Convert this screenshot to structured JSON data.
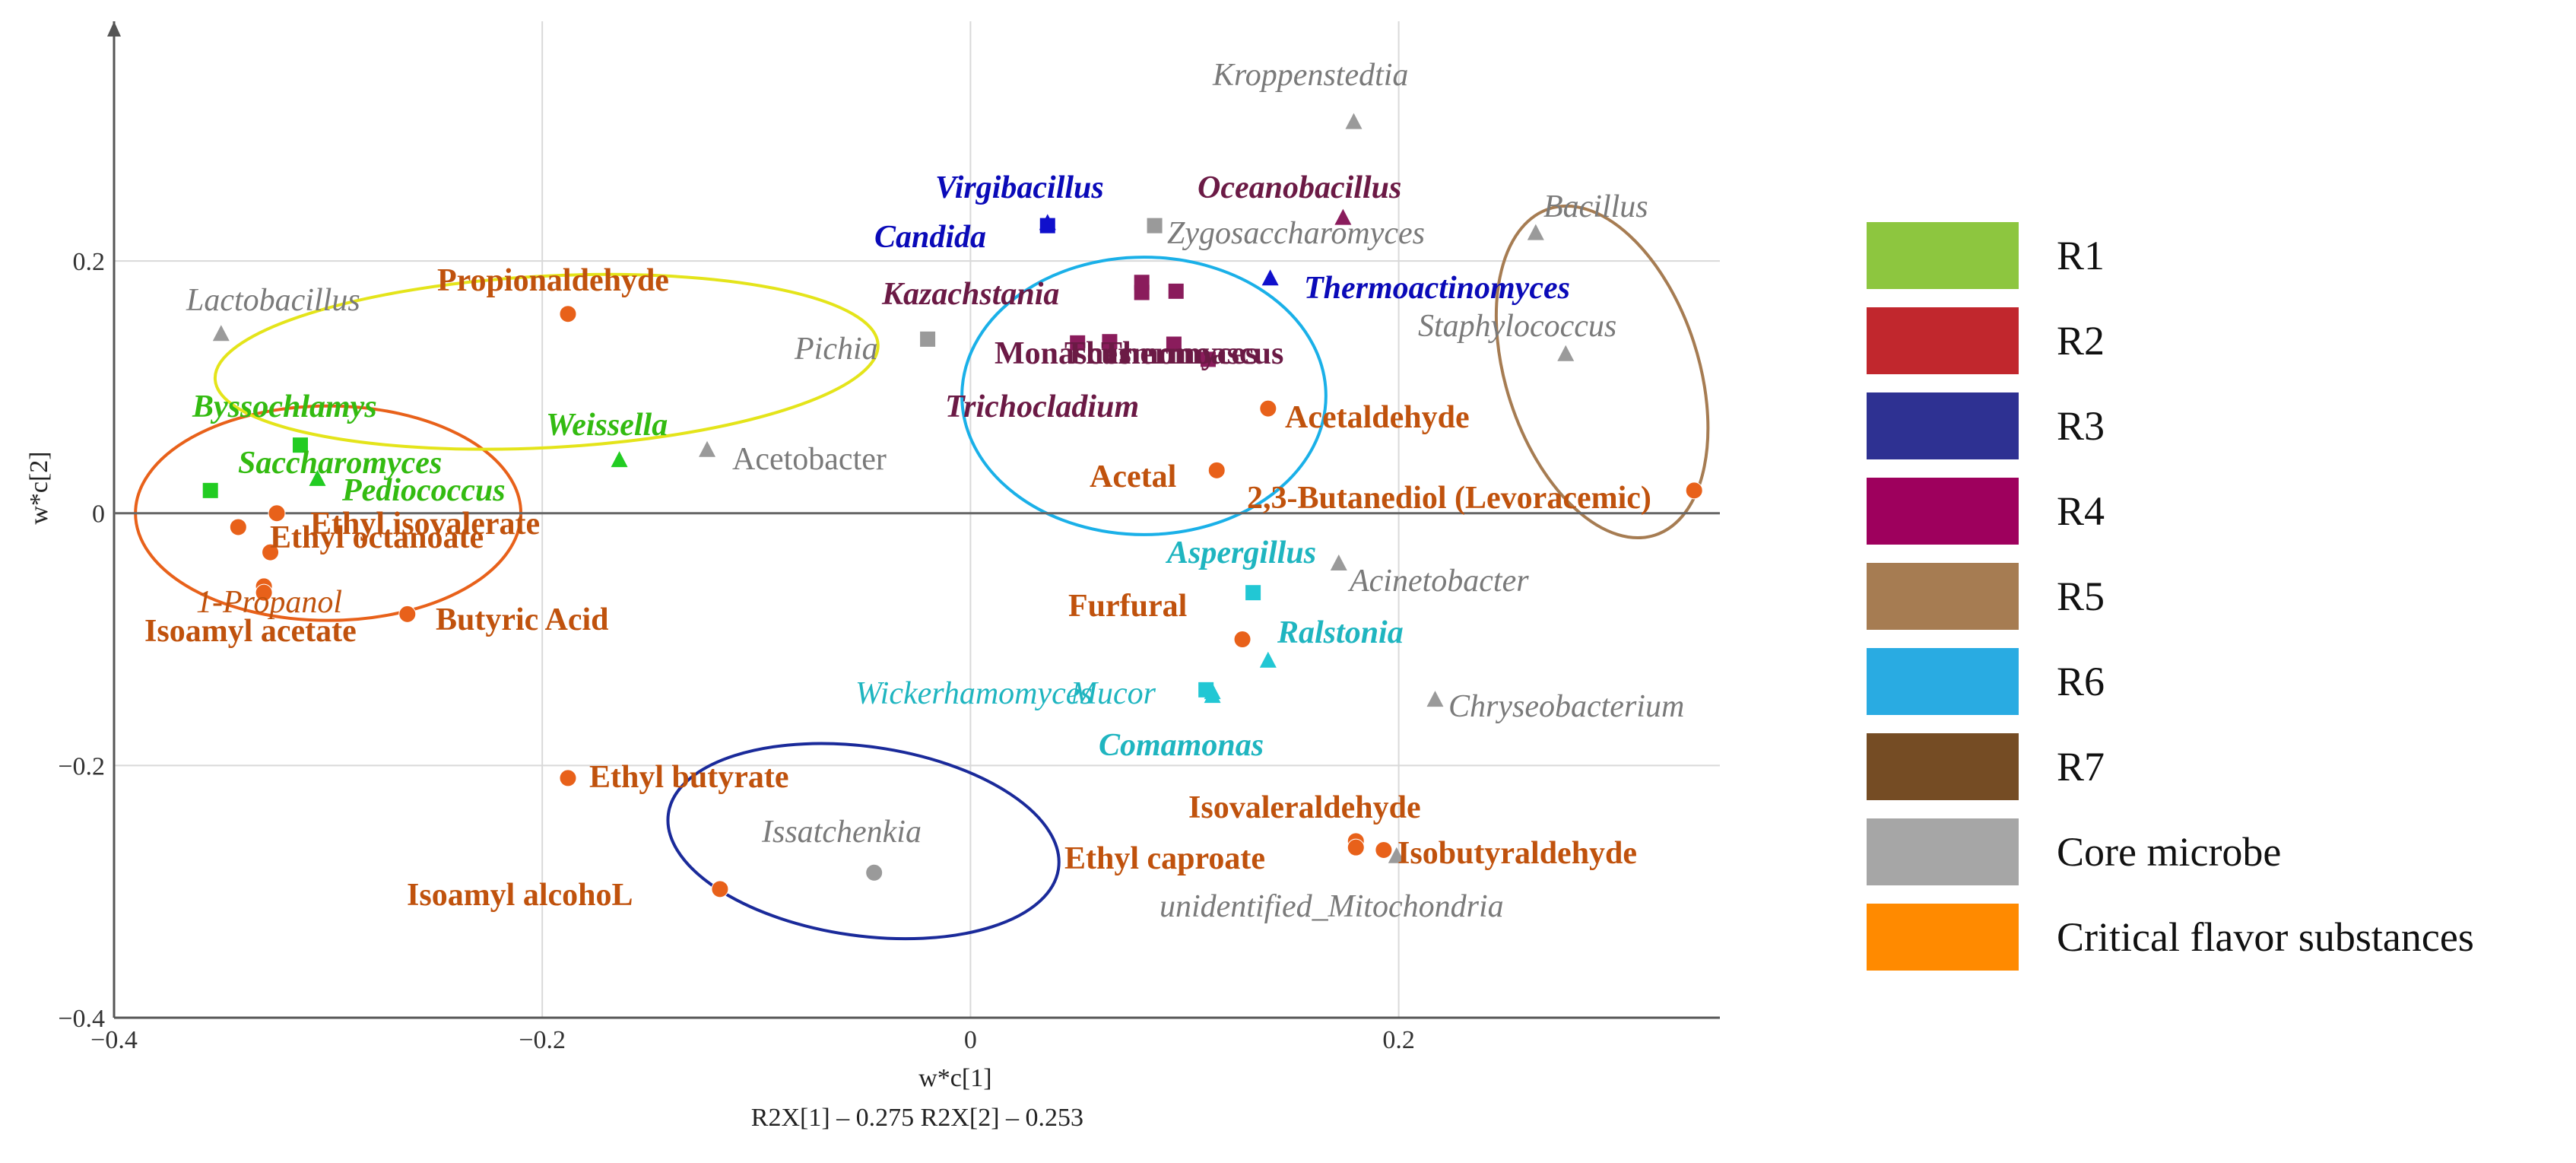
{
  "chart_data": {
    "type": "scatter",
    "title": "",
    "xlabel": "w*c[1]",
    "ylabel": "w*c[2]",
    "footer": "R2X[1] – 0.275 R2X[2] – 0.253",
    "xlim": [
      -0.4,
      0.35
    ],
    "ylim": [
      -0.4,
      0.39
    ],
    "xticks": [
      -0.4,
      -0.2,
      0,
      0.2
    ],
    "xtick_labels": [
      "−0.4",
      "−0.2",
      "0",
      "0.2"
    ],
    "yticks": [
      -0.4,
      -0.2,
      0,
      0.2
    ],
    "ytick_labels": [
      "−0.4",
      "−0.2",
      "0",
      "0.2"
    ],
    "grid": true,
    "legend_position": "right",
    "legend": [
      {
        "label": "R1",
        "color": "#8dc63f"
      },
      {
        "label": "R2",
        "color": "#c1272d"
      },
      {
        "label": "R3",
        "color": "#2e3192"
      },
      {
        "label": "R4",
        "color": "#9e005d"
      },
      {
        "label": "R5",
        "color": "#a67c52"
      },
      {
        "label": "R6",
        "color": "#29abe2"
      },
      {
        "label": "R7",
        "color": "#754c24"
      },
      {
        "label": "Core microbe",
        "color": "#a6a6a6"
      },
      {
        "label": "Critical flavor substances",
        "color": "#ff8a00"
      }
    ],
    "groups": {
      "R1": {
        "color": "#22cc22",
        "label_color": "#33bb11"
      },
      "R3": {
        "color": "#1010cc",
        "label_color": "#0a0ab8"
      },
      "R4": {
        "color": "#8a1c5c",
        "label_color": "#6b1a45"
      },
      "R6": {
        "color": "#22c7d4",
        "label_color": "#1fb5c0"
      },
      "Core": {
        "color": "#9a9a9a",
        "label_color": "#7a7a7a"
      },
      "Flavor": {
        "color": "#e8611a",
        "label_color": "#c0520d"
      }
    },
    "points": [
      {
        "label": "Kroppenstedtia",
        "x": 0.179,
        "y": 0.31,
        "group": "Core",
        "shape": "triangle"
      },
      {
        "label": "Zygosaccharomyces",
        "x": 0.086,
        "y": 0.228,
        "group": "Core",
        "shape": "square"
      },
      {
        "label": "Bacillus",
        "x": 0.264,
        "y": 0.222,
        "group": "Core",
        "shape": "triangle"
      },
      {
        "label": "Lactobacillus",
        "x": -0.35,
        "y": 0.142,
        "group": "Core",
        "shape": "triangle"
      },
      {
        "label": "Pichia",
        "x": -0.02,
        "y": 0.138,
        "group": "Core",
        "shape": "square"
      },
      {
        "label": "Staphylococcus",
        "x": 0.278,
        "y": 0.126,
        "group": "Core",
        "shape": "triangle"
      },
      {
        "label": "Acetobacter",
        "x": -0.123,
        "y": 0.05,
        "group": "Core",
        "shape": "triangle"
      },
      {
        "label": "Acinetobacter",
        "x": 0.172,
        "y": -0.04,
        "group": "Core",
        "shape": "triangle"
      },
      {
        "label": "Chryseobacterium",
        "x": 0.217,
        "y": -0.148,
        "group": "Core",
        "shape": "triangle"
      },
      {
        "label": "Issatchenkia",
        "x": -0.045,
        "y": -0.285,
        "group": "Core",
        "shape": "circle"
      },
      {
        "label": "unidentified_Mitochondria",
        "x": 0.199,
        "y": -0.272,
        "group": "Core",
        "shape": "triangle"
      },
      {
        "label": "Virgibacillus",
        "x": 0.036,
        "y": 0.23,
        "group": "R3",
        "shape": "triangle"
      },
      {
        "label": "Candida",
        "x": 0.036,
        "y": 0.228,
        "group": "R3",
        "shape": "square"
      },
      {
        "label": "Thermoactinomyces",
        "x": 0.14,
        "y": 0.186,
        "group": "R3",
        "shape": "triangle"
      },
      {
        "label": "Oceanobacillus",
        "x": 0.174,
        "y": 0.234,
        "group": "R4",
        "shape": "triangle"
      },
      {
        "label": "Kazachstania",
        "x": 0.08,
        "y": 0.183,
        "group": "R4",
        "shape": "square"
      },
      {
        "label": "",
        "x": 0.08,
        "y": 0.175,
        "group": "R4",
        "shape": "square"
      },
      {
        "label": "",
        "x": 0.096,
        "y": 0.176,
        "group": "R4",
        "shape": "square"
      },
      {
        "label": "Monascus",
        "x": 0.05,
        "y": 0.135,
        "group": "R4",
        "shape": "square"
      },
      {
        "label": "Thermomyces",
        "x": 0.065,
        "y": 0.136,
        "group": "R4",
        "shape": "square"
      },
      {
        "label": "Thermoascus",
        "x": 0.095,
        "y": 0.134,
        "group": "R4",
        "shape": "square"
      },
      {
        "label": "Trichocladium",
        "x": 0.111,
        "y": 0.122,
        "group": "R4",
        "shape": "square"
      },
      {
        "label": "Byssochlamys",
        "x": -0.355,
        "y": 0.018,
        "group": "R1",
        "shape": "square"
      },
      {
        "label": "Saccharomyces",
        "x": -0.313,
        "y": 0.054,
        "group": "R1",
        "shape": "square"
      },
      {
        "label": "Pediococcus",
        "x": -0.305,
        "y": 0.027,
        "group": "R1",
        "shape": "triangle"
      },
      {
        "label": "Weissella",
        "x": -0.164,
        "y": 0.042,
        "group": "R1",
        "shape": "triangle"
      },
      {
        "label": "Aspergillus",
        "x": 0.132,
        "y": -0.063,
        "group": "R6",
        "shape": "square"
      },
      {
        "label": "Ralstonia",
        "x": 0.139,
        "y": -0.117,
        "group": "R6",
        "shape": "triangle"
      },
      {
        "label": "Wickerhamomyces",
        "x": 0.11,
        "y": -0.14,
        "group": "R6",
        "shape": "square"
      },
      {
        "label": "Mucor",
        "x": 0.113,
        "y": -0.142,
        "group": "R6",
        "shape": "triangle"
      },
      {
        "label": "Comamonas",
        "x": 0.113,
        "y": -0.145,
        "group": "R6",
        "shape": "triangle"
      },
      {
        "label": "Propionaldehyde",
        "x": -0.188,
        "y": 0.158,
        "group": "Flavor",
        "shape": "circle"
      },
      {
        "label": "Acetaldehyde",
        "x": 0.139,
        "y": 0.083,
        "group": "Flavor",
        "shape": "circle"
      },
      {
        "label": "Acetal",
        "x": 0.115,
        "y": 0.034,
        "group": "Flavor",
        "shape": "circle"
      },
      {
        "label": "2,3-Butanediol (Levoracemic)",
        "x": 0.338,
        "y": 0.018,
        "group": "Flavor",
        "shape": "circle"
      },
      {
        "label": "Ethyl isovalerate",
        "x": -0.324,
        "y": 0.0,
        "group": "Flavor",
        "shape": "circle"
      },
      {
        "label": "Ethyl octanoate",
        "x": -0.342,
        "y": -0.011,
        "group": "Flavor",
        "shape": "circle"
      },
      {
        "label": "",
        "x": -0.327,
        "y": -0.031,
        "group": "Flavor",
        "shape": "circle"
      },
      {
        "label": "1-Propanol",
        "x": -0.33,
        "y": -0.058,
        "group": "Flavor",
        "shape": "circle"
      },
      {
        "label": "Isoamyl acetate",
        "x": -0.33,
        "y": -0.063,
        "group": "Flavor",
        "shape": "circle"
      },
      {
        "label": "Butyric Acid",
        "x": -0.263,
        "y": -0.08,
        "group": "Flavor",
        "shape": "circle"
      },
      {
        "label": "Furfural",
        "x": 0.127,
        "y": -0.1,
        "group": "Flavor",
        "shape": "circle"
      },
      {
        "label": "Ethyl butyrate",
        "x": -0.188,
        "y": -0.21,
        "group": "Flavor",
        "shape": "circle"
      },
      {
        "label": "Isoamyl alcohoL",
        "x": -0.117,
        "y": -0.298,
        "group": "Flavor",
        "shape": "circle"
      },
      {
        "label": "Isovaleraldehyde",
        "x": 0.18,
        "y": -0.26,
        "group": "Flavor",
        "shape": "circle"
      },
      {
        "label": "Ethyl caproate",
        "x": 0.18,
        "y": -0.265,
        "group": "Flavor",
        "shape": "circle"
      },
      {
        "label": "Isobutyraldehyde",
        "x": 0.193,
        "y": -0.267,
        "group": "Flavor",
        "shape": "circle"
      }
    ]
  }
}
